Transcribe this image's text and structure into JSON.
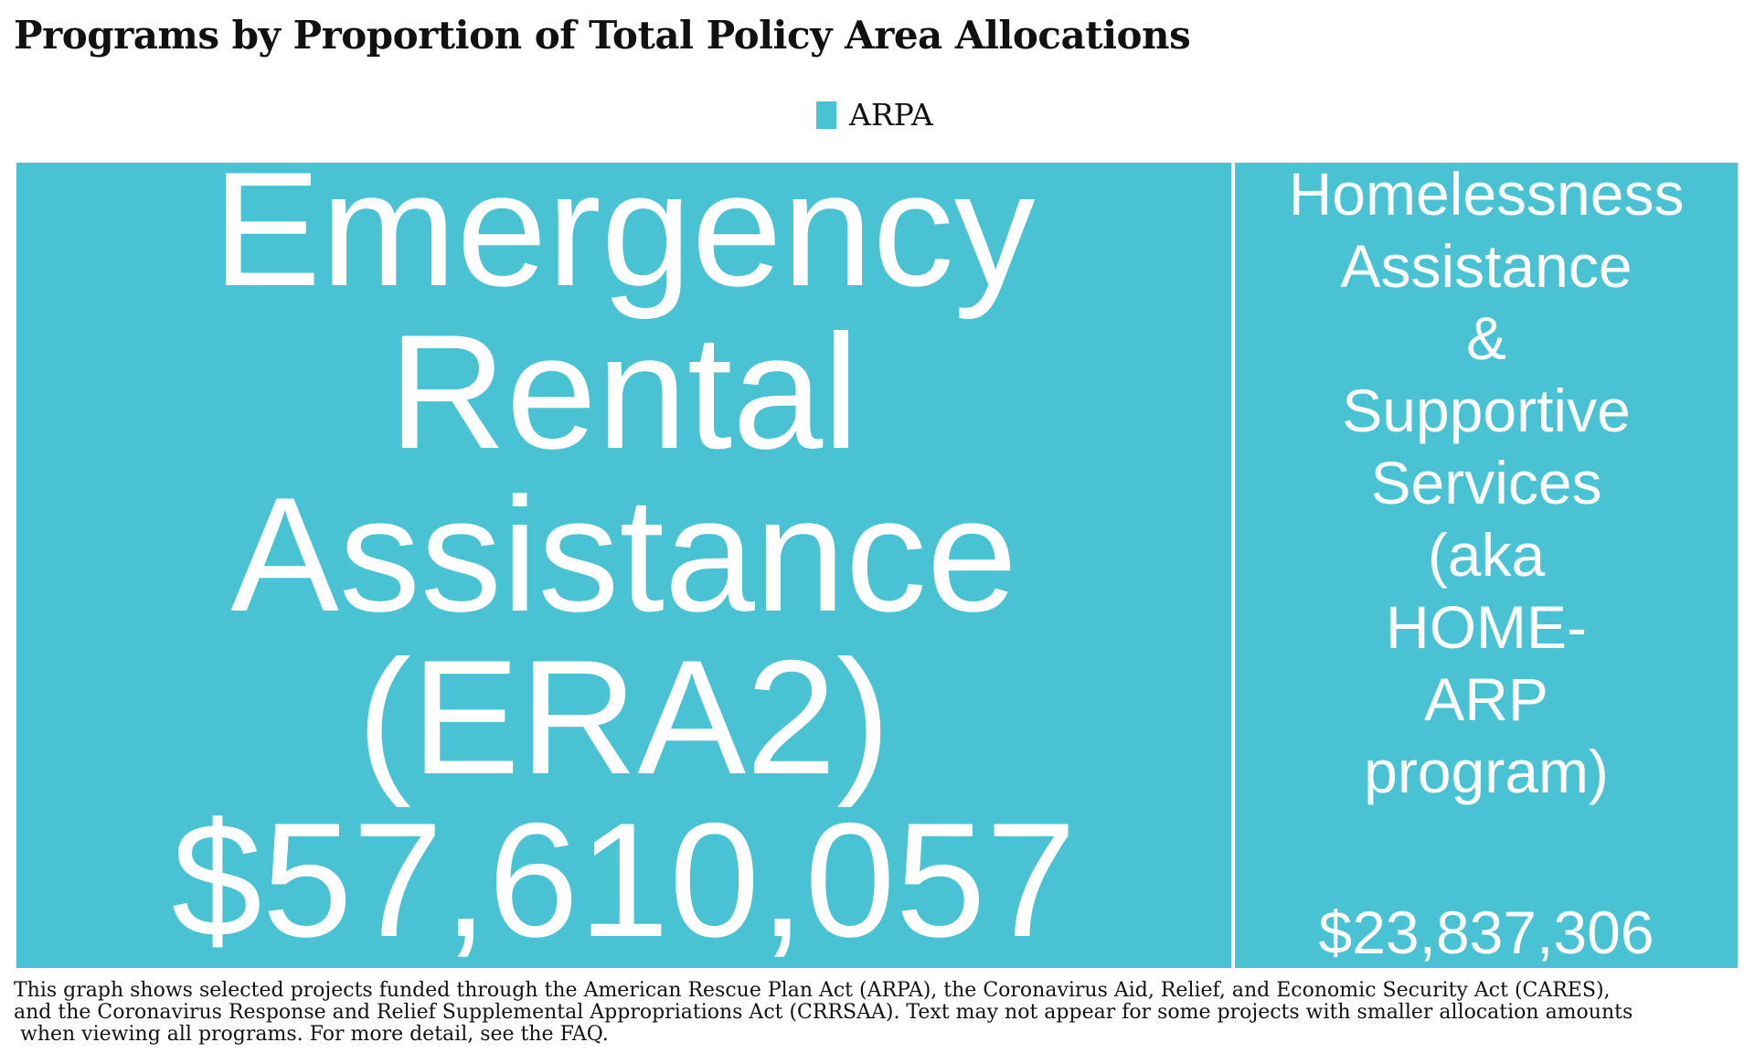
{
  "chart_data": {
    "type": "treemap",
    "title": "Programs by Proportion of Total Policy Area Allocations",
    "legend": {
      "position": "top-center",
      "entries": [
        {
          "name": "ARPA",
          "color": "#49C2D4"
        }
      ]
    },
    "items": [
      {
        "name": "Emergency Rental Assistance (ERA2)",
        "value": 57610057,
        "value_label": "$57,610,057",
        "series": "ARPA",
        "label_lines": [
          "Emergency",
          "Rental",
          "Assistance",
          "(ERA2)",
          "$57,610,057"
        ]
      },
      {
        "name": "Homelessness Assistance & Supportive Services (aka HOME-ARP program)",
        "value": 23837306,
        "value_label": "$23,837,306",
        "series": "ARPA",
        "label_lines": [
          "Homelessness",
          "Assistance",
          "&",
          "Supportive",
          "Services",
          "(aka",
          "HOME-",
          "ARP",
          "program)"
        ]
      }
    ]
  },
  "footnote": [
    "This graph shows selected projects funded through the American Rescue Plan Act (ARPA), the Coronavirus Aid, Relief, and Economic Security Act (CARES),",
    "and the Coronavirus Response and Relief Supplemental Appropriations Act (CRRSAA). Text may not appear for some projects with smaller allocation amounts",
    " when viewing all programs. For more detail, see the FAQ."
  ]
}
